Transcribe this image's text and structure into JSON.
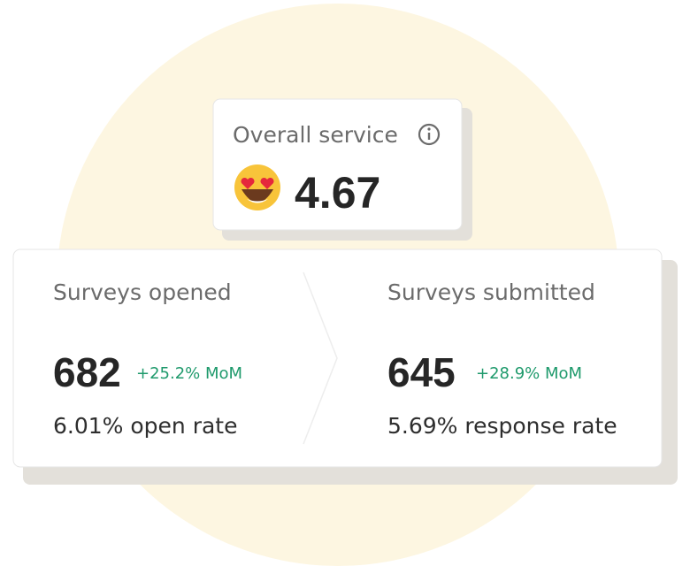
{
  "overall": {
    "label": "Overall service",
    "score": "4.67"
  },
  "metrics": [
    {
      "title": "Surveys opened",
      "count": "682",
      "change": "+25.2% MoM",
      "rate": "6.01% open rate"
    },
    {
      "title": "Surveys submitted",
      "count": "645",
      "change": "+28.9% MoM",
      "rate": "5.69% response rate"
    }
  ]
}
